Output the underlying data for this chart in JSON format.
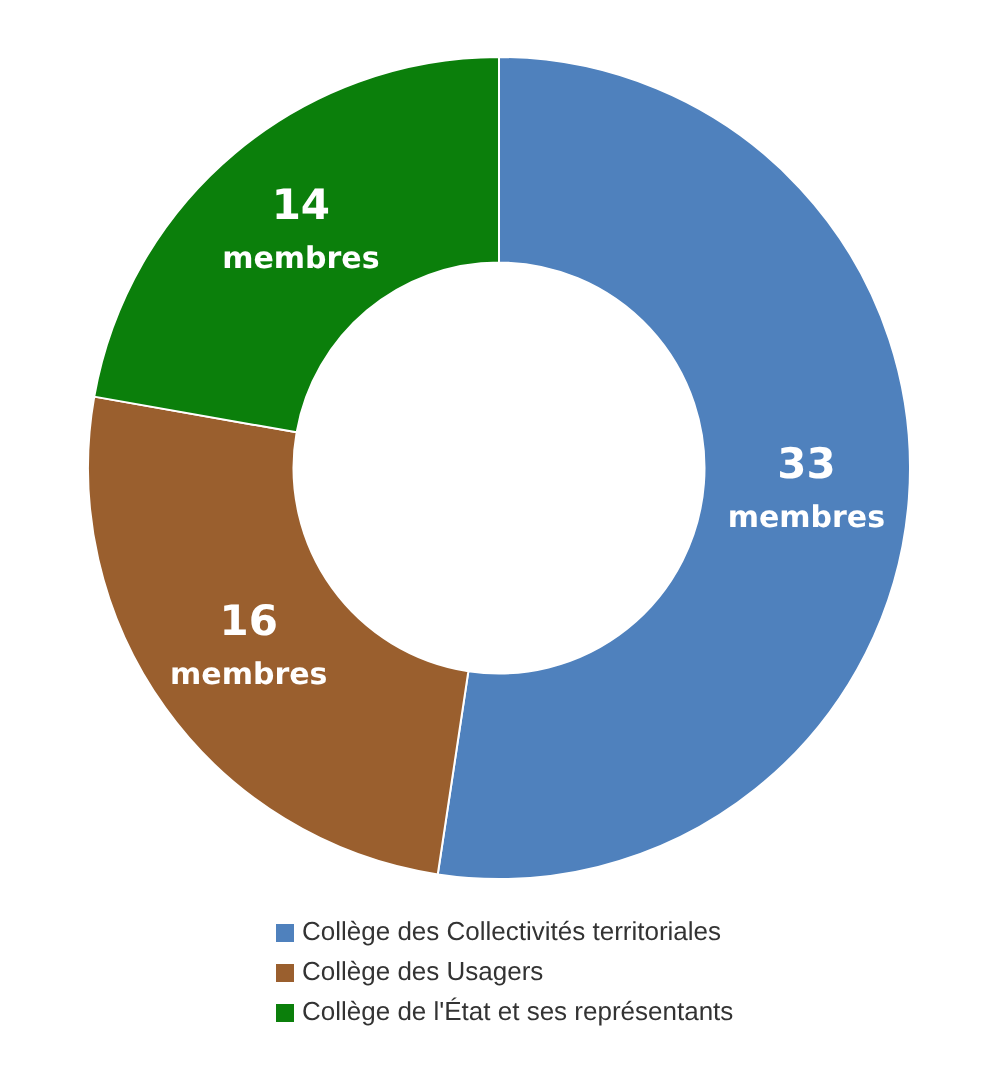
{
  "chart_data": {
    "type": "donut",
    "categories": [
      "Collège des Collectivités territoriales",
      "Collège des Usagers",
      "Collège de l'État et ses représentants"
    ],
    "values": [
      33,
      16,
      14
    ],
    "colors": [
      "#4f81bd",
      "#9a5f2e",
      "#0b7f0b"
    ],
    "value_labels": [
      "33 membres",
      "16 membres",
      "14 membres"
    ],
    "legend": "bottom"
  }
}
